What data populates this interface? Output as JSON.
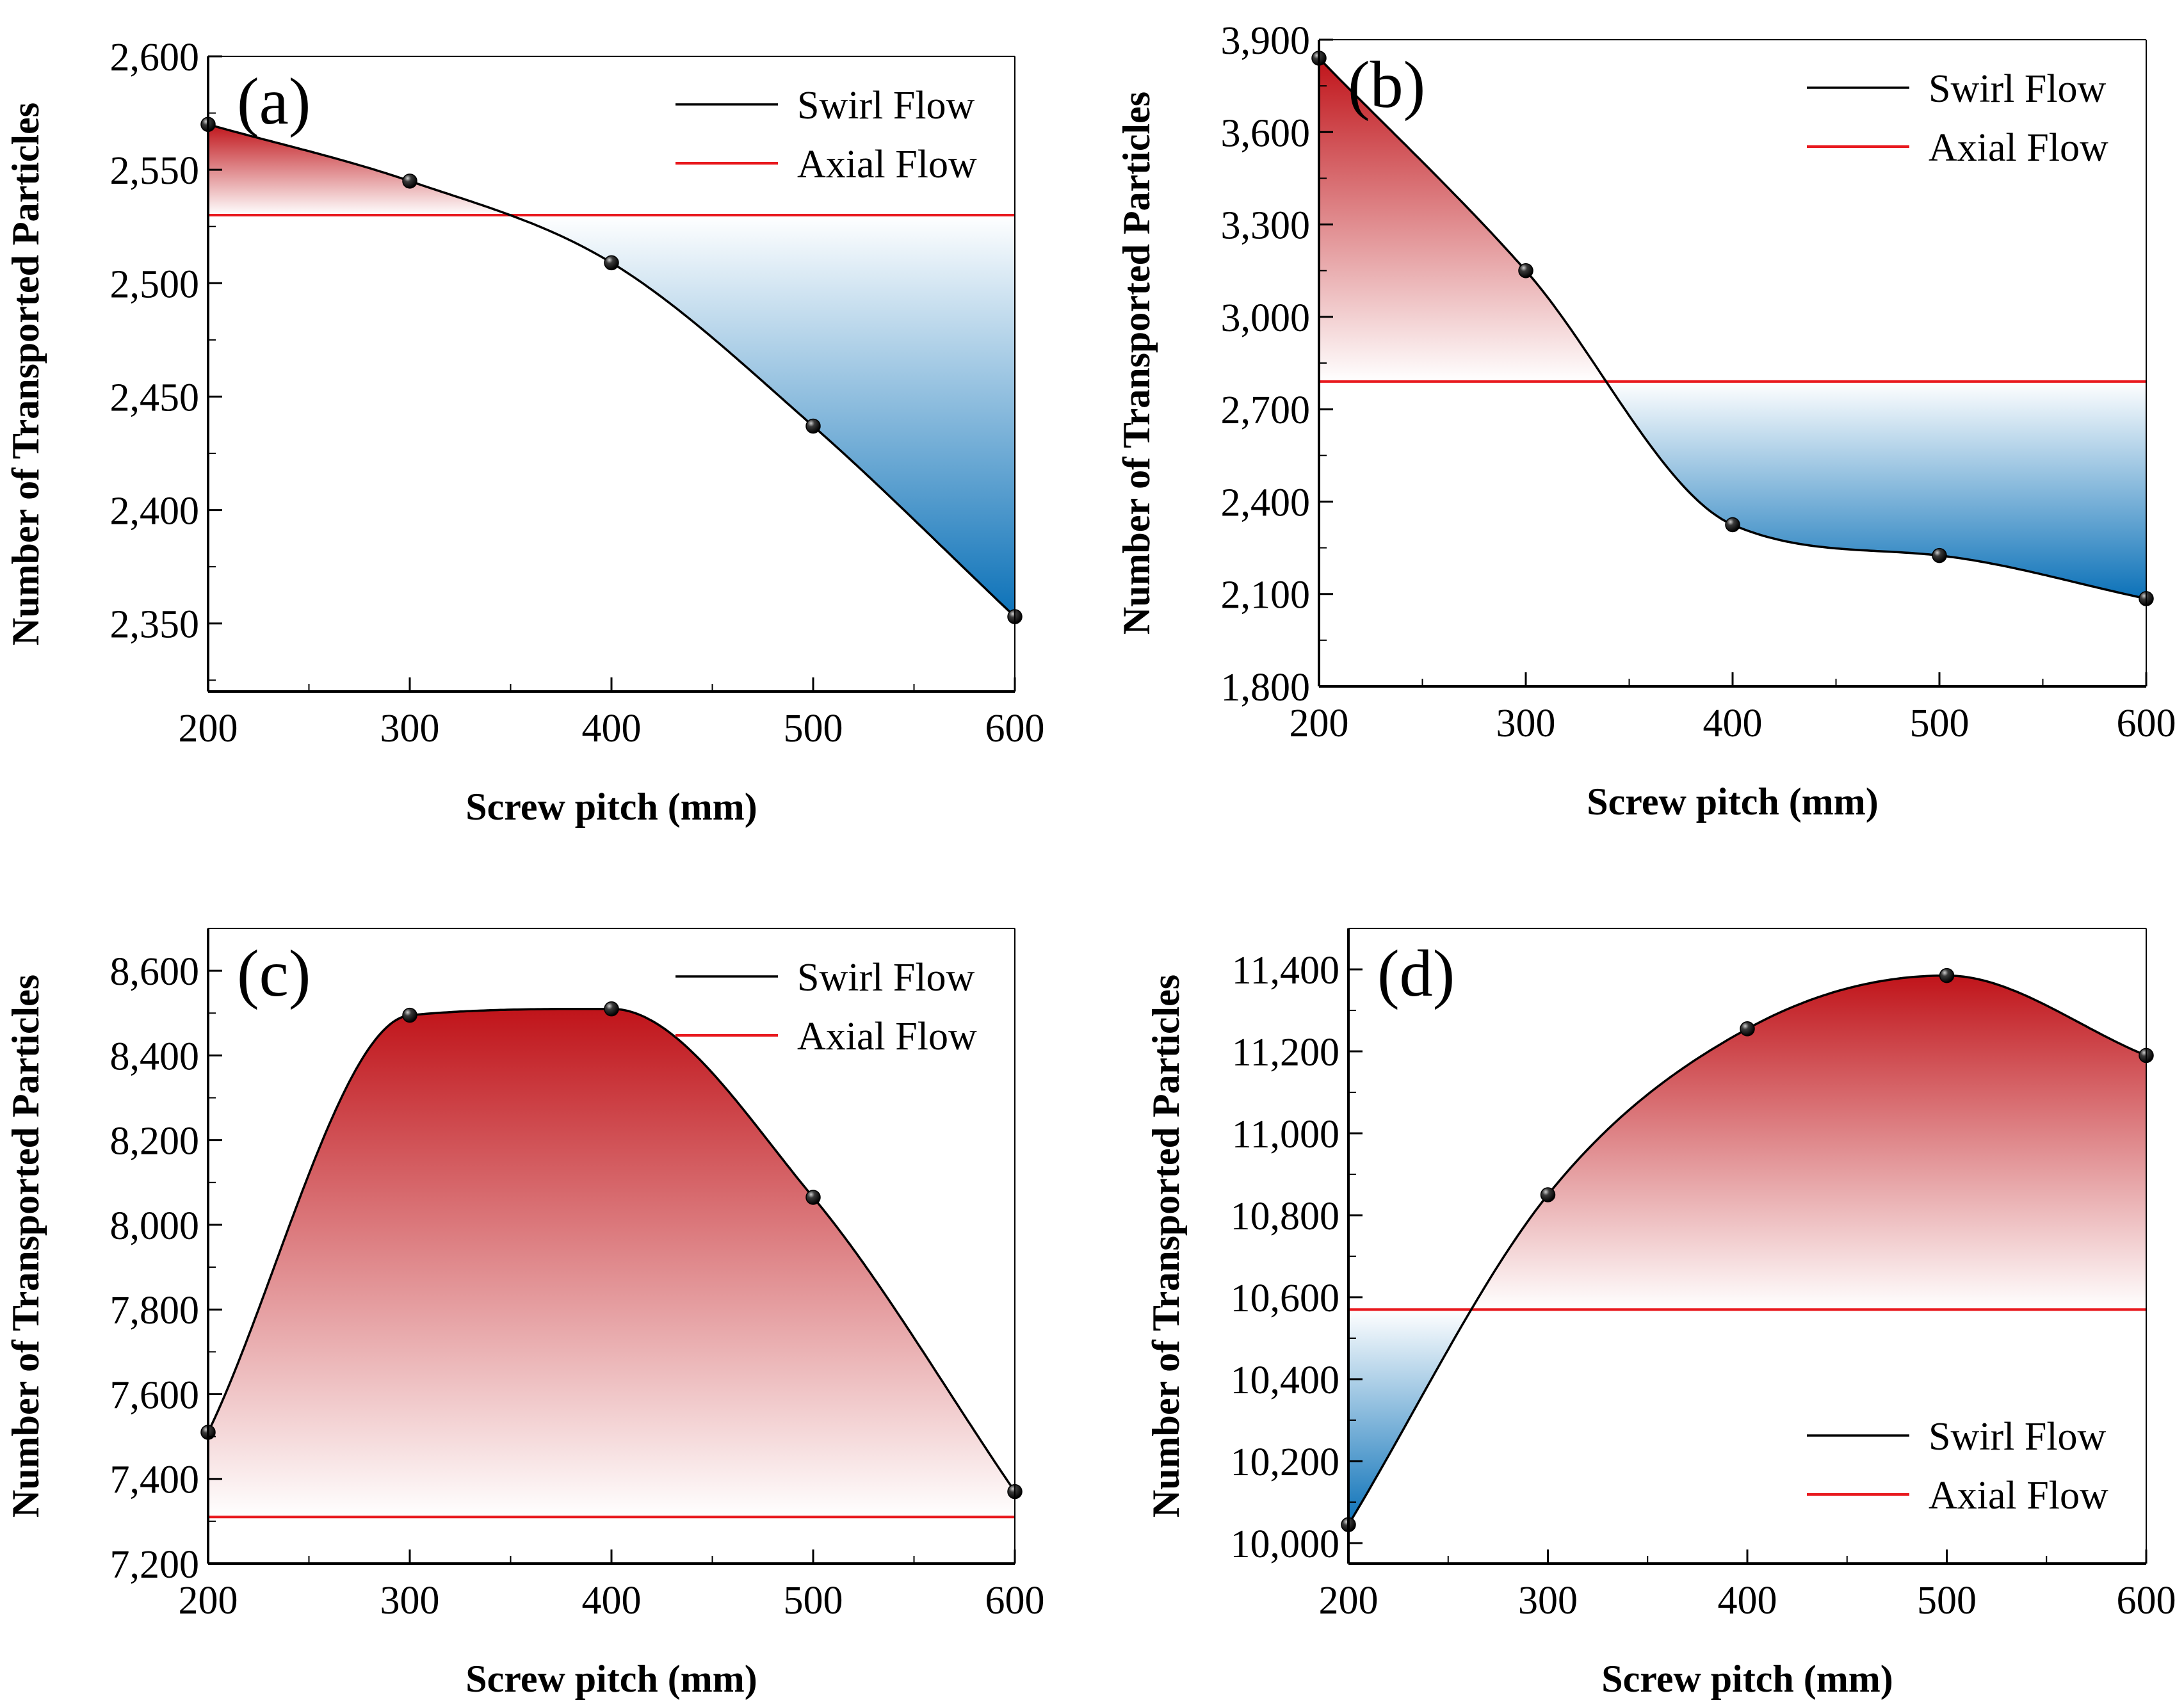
{
  "figure": {
    "legend": {
      "swirl_label": "Swirl Flow",
      "axial_label": "Axial Flow"
    },
    "colors": {
      "swirl": "#000000",
      "axial": "#e8191e",
      "above": "#c0141a",
      "below": "#0b71b8"
    }
  },
  "chart_data": [
    {
      "type": "line",
      "panel": "(a)",
      "title": "",
      "xlabel": "Screw pitch (mm)",
      "ylabel": "Number of Transported Particles",
      "xlim": [
        200,
        600
      ],
      "ylim": [
        2320,
        2600
      ],
      "xticks": [
        200,
        300,
        400,
        500,
        600
      ],
      "xtick_labels": [
        "200",
        "300",
        "400",
        "500",
        "600"
      ],
      "yticks": [
        2350,
        2400,
        2450,
        2500,
        2550,
        2600
      ],
      "ytick_labels": [
        "2,350",
        "2,400",
        "2,450",
        "2,500",
        "2,550",
        "2,600"
      ],
      "legend_position": "top-right",
      "series": [
        {
          "name": "Swirl Flow",
          "x": [
            200,
            300,
            400,
            500,
            600
          ],
          "values": [
            2570,
            2545,
            2509,
            2437,
            2353
          ]
        },
        {
          "name": "Axial Flow",
          "constant": 2530
        }
      ]
    },
    {
      "type": "line",
      "panel": "(b)",
      "title": "",
      "xlabel": "Screw pitch (mm)",
      "ylabel": "Number of Transported Particles",
      "xlim": [
        200,
        600
      ],
      "ylim": [
        1800,
        3900
      ],
      "xticks": [
        200,
        300,
        400,
        500,
        600
      ],
      "xtick_labels": [
        "200",
        "300",
        "400",
        "500",
        "600"
      ],
      "yticks": [
        1800,
        2100,
        2400,
        2700,
        3000,
        3300,
        3600,
        3900
      ],
      "ytick_labels": [
        "1,800",
        "2,100",
        "2,400",
        "2,700",
        "3,000",
        "3,300",
        "3,600",
        "3,900"
      ],
      "legend_position": "top-right",
      "series": [
        {
          "name": "Swirl Flow",
          "x": [
            200,
            300,
            400,
            500,
            600
          ],
          "values": [
            3840,
            3150,
            2325,
            2225,
            2085
          ]
        },
        {
          "name": "Axial Flow",
          "constant": 2790
        }
      ]
    },
    {
      "type": "line",
      "panel": "(c)",
      "title": "",
      "xlabel": "Screw pitch (mm)",
      "ylabel": "Number of Transported Particles",
      "xlim": [
        200,
        600
      ],
      "ylim": [
        7200,
        8700
      ],
      "xticks": [
        200,
        300,
        400,
        500,
        600
      ],
      "xtick_labels": [
        "200",
        "300",
        "400",
        "500",
        "600"
      ],
      "yticks": [
        7200,
        7400,
        7600,
        7800,
        8000,
        8200,
        8400,
        8600
      ],
      "ytick_labels": [
        "7,200",
        "7,400",
        "7,600",
        "7,800",
        "8,000",
        "8,200",
        "8,400",
        "8,600"
      ],
      "legend_position": "top-right",
      "series": [
        {
          "name": "Swirl Flow",
          "x": [
            200,
            300,
            400,
            500,
            600
          ],
          "values": [
            7510,
            8495,
            8510,
            8065,
            7370
          ]
        },
        {
          "name": "Axial Flow",
          "constant": 7310
        }
      ]
    },
    {
      "type": "line",
      "panel": "(d)",
      "title": "",
      "xlabel": "Screw pitch (mm)",
      "ylabel": "Number of Transported Particles",
      "xlim": [
        200,
        600
      ],
      "ylim": [
        9950,
        11500
      ],
      "xticks": [
        200,
        300,
        400,
        500,
        600
      ],
      "xtick_labels": [
        "200",
        "300",
        "400",
        "500",
        "600"
      ],
      "yticks": [
        10000,
        10200,
        10400,
        10600,
        10800,
        11000,
        11200,
        11400
      ],
      "ytick_labels": [
        "10,000",
        "10,200",
        "10,400",
        "10,600",
        "10,800",
        "11,000",
        "11,200",
        "11,400"
      ],
      "legend_position": "bottom-right",
      "series": [
        {
          "name": "Swirl Flow",
          "x": [
            200,
            300,
            400,
            500,
            600
          ],
          "values": [
            10045,
            10850,
            11255,
            11385,
            11190
          ]
        },
        {
          "name": "Axial Flow",
          "constant": 10570
        }
      ]
    }
  ]
}
